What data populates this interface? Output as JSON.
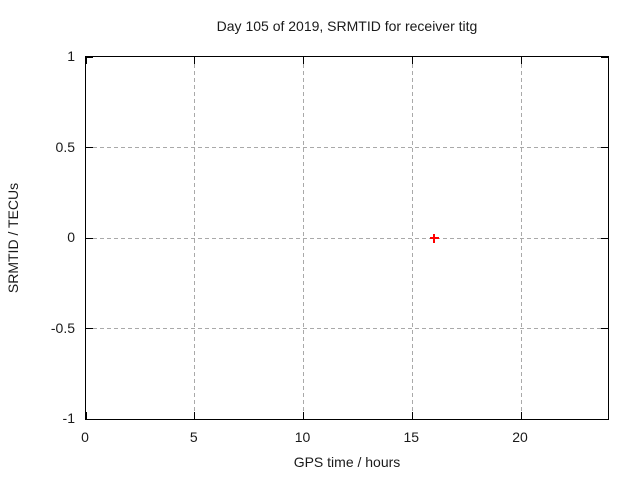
{
  "chart_data": {
    "type": "scatter",
    "title": "Day 105 of 2019, SRMTID for receiver titg",
    "xlabel": "GPS time / hours",
    "ylabel": "SRMTID / TECUs",
    "xlim": [
      0,
      24
    ],
    "ylim": [
      -1,
      1
    ],
    "xticks": [
      {
        "value": 0,
        "label": "0"
      },
      {
        "value": 5,
        "label": "5"
      },
      {
        "value": 10,
        "label": "10"
      },
      {
        "value": 15,
        "label": "15"
      },
      {
        "value": 20,
        "label": "20"
      }
    ],
    "yticks": [
      {
        "value": 1,
        "label": "1"
      },
      {
        "value": 0.5,
        "label": "0.5"
      },
      {
        "value": 0,
        "label": "0"
      },
      {
        "value": -0.5,
        "label": "-0.5"
      },
      {
        "value": -1,
        "label": "-1"
      }
    ],
    "grid": {
      "visible": true,
      "style": "dashed",
      "color": "#a9a9a9"
    },
    "legend": "none",
    "series": [
      {
        "name": "SRMTID",
        "marker": "plus",
        "color": "#ff0000",
        "points": [
          {
            "x": 16,
            "y": 0
          }
        ]
      }
    ]
  },
  "style": {
    "background": "#ffffff",
    "border_color": "#000000",
    "text_color": "#1a1a1a"
  }
}
